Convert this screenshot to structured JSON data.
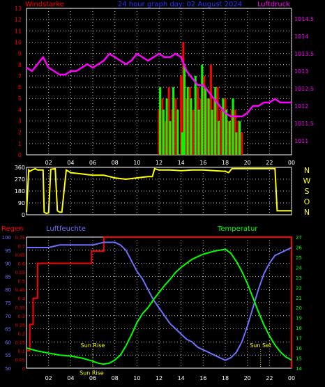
{
  "colors": {
    "bg": "#000000",
    "wind_bar": "#ff0000",
    "gust_bar": "#00ff00",
    "pressure": "#ff00ff",
    "direction": "#ffff00",
    "rain": "#ff0000",
    "humidity": "#7070ff",
    "temperature": "#00ff00",
    "grid": "#c0c0c0",
    "axis_white": "#ffffff",
    "title": "#3030ff"
  },
  "chart_data": [
    {
      "type": "bar",
      "title": "24 hour graph day: 02 August 2024",
      "ylabel_left": "Windstarke",
      "ylabel_right": "Luftdruck",
      "x_ticks": [
        "02",
        "04",
        "06",
        "08",
        "10",
        "12",
        "14",
        "16",
        "18",
        "20",
        "22",
        "00"
      ],
      "y_left_ticks": [
        0,
        1,
        2,
        3,
        4,
        5,
        6,
        7,
        8,
        9,
        10,
        11,
        12,
        13
      ],
      "y_left_range": [
        0,
        13
      ],
      "y_right_ticks": [
        1011,
        1011.5,
        1012,
        1012.5,
        1013,
        1013.5,
        1014,
        1014.5
      ],
      "y_right_range": [
        1010.6,
        1014.8
      ],
      "x_range": [
        0,
        24
      ],
      "series": [
        {
          "type": "bar",
          "color": "wind_bar",
          "note": "wind average",
          "x": [
            12.0,
            12.3,
            12.6,
            12.9,
            13.2,
            13.5,
            14.0,
            14.2,
            14.5,
            14.8,
            15.1,
            15.5,
            15.8,
            16.1,
            16.4,
            16.7,
            17.0,
            17.3,
            17.6,
            18.0,
            18.3,
            18.6,
            18.9,
            19.2,
            19.5
          ],
          "values": [
            4,
            5,
            3,
            6,
            4,
            5,
            7,
            10,
            5,
            6,
            4,
            6,
            5,
            7,
            5,
            8,
            5,
            6,
            4,
            5,
            3,
            4,
            4,
            3,
            2
          ]
        },
        {
          "type": "bar",
          "color": "gust_bar",
          "note": "wind gust",
          "x": [
            12.1,
            12.4,
            12.7,
            13.0,
            13.3,
            13.7,
            14.1,
            14.3,
            14.6,
            14.9,
            15.3,
            15.6,
            15.9,
            16.2,
            16.5,
            16.8,
            17.1,
            17.4,
            17.8,
            18.1,
            18.4,
            18.7,
            19.0,
            19.3
          ],
          "values": [
            6,
            4,
            5,
            3,
            6,
            4,
            2,
            8,
            6,
            5,
            7,
            4,
            8,
            6,
            5,
            4,
            6,
            3,
            5,
            4,
            3,
            5,
            2,
            3
          ]
        },
        {
          "type": "line",
          "color": "pressure",
          "axis": "right",
          "x": [
            0,
            0.5,
            1,
            1.5,
            2,
            2.5,
            3,
            3.5,
            4,
            4.5,
            5,
            5.5,
            6,
            6.5,
            7,
            7.5,
            8,
            8.5,
            9,
            9.5,
            10,
            10.5,
            11,
            11.5,
            12,
            12.5,
            13,
            13.5,
            14,
            14.5,
            15,
            15.5,
            16,
            16.5,
            17,
            17.5,
            18,
            18.5,
            19,
            19.5,
            20,
            20.5,
            21,
            21.5,
            22,
            22.5,
            23,
            23.5,
            24
          ],
          "values": [
            1013.1,
            1013.0,
            1013.2,
            1013.4,
            1013.1,
            1013.0,
            1012.9,
            1012.9,
            1013.0,
            1013.0,
            1013.1,
            1013.2,
            1013.1,
            1013.2,
            1013.3,
            1013.5,
            1013.4,
            1013.3,
            1013.2,
            1013.3,
            1013.5,
            1013.4,
            1013.3,
            1013.4,
            1013.5,
            1013.4,
            1013.4,
            1013.5,
            1013.4,
            1013.0,
            1012.8,
            1012.6,
            1012.6,
            1012.4,
            1012.2,
            1012.0,
            1011.8,
            1011.7,
            1011.7,
            1011.7,
            1011.8,
            1012.0,
            1012.0,
            1012.1,
            1012.1,
            1012.2,
            1012.1,
            1012.1,
            1012.1
          ]
        }
      ]
    },
    {
      "type": "line",
      "title": "",
      "y_left_ticks": [
        0,
        90,
        180,
        270,
        360
      ],
      "y_left_range": [
        0,
        360
      ],
      "y_right_labels": [
        "N",
        "W",
        "S",
        "O",
        "N"
      ],
      "x_range": [
        0,
        24
      ],
      "series": [
        {
          "name": "",
          "color": "direction",
          "x": [
            0,
            0.2,
            0.3,
            0.5,
            0.8,
            1.0,
            1.5,
            1.6,
            1.8,
            2.0,
            2.2,
            2.6,
            2.8,
            3.0,
            3.2,
            3.6,
            4.0,
            5.0,
            6.0,
            7.0,
            8.0,
            9.0,
            10.0,
            11.0,
            11.4,
            11.6,
            12.0,
            13.0,
            14.0,
            15.0,
            16.0,
            17.0,
            18.0,
            18.3,
            18.6,
            19.0,
            20.0,
            21.0,
            22.0,
            22.5,
            22.7,
            23.0,
            24.0
          ],
          "values": [
            20,
            340,
            330,
            340,
            350,
            340,
            340,
            20,
            10,
            15,
            345,
            350,
            30,
            20,
            20,
            340,
            320,
            310,
            300,
            300,
            280,
            270,
            280,
            290,
            290,
            350,
            340,
            340,
            335,
            340,
            340,
            335,
            330,
            320,
            350,
            350,
            350,
            350,
            350,
            350,
            30,
            30,
            30
          ]
        }
      ]
    },
    {
      "type": "line",
      "title": "",
      "ylabel_rain": "Regen",
      "ylabel_humidity": "Luftfeuchte",
      "ylabel_temperature": "Temperatur",
      "x_ticks": [
        "02",
        "04",
        "06",
        "08",
        "10",
        "12",
        "14",
        "16",
        "18",
        "20",
        "22",
        "00"
      ],
      "humidity_ticks": [
        50,
        55,
        60,
        65,
        70,
        75,
        80,
        85,
        90,
        95,
        100
      ],
      "humidity_range": [
        50,
        100
      ],
      "rain_ticks": [
        0,
        0.05,
        0.1,
        0.15,
        0.2,
        0.25,
        0.3,
        0.35,
        0.4,
        0.45,
        0.5,
        0.55,
        0.6,
        0.65,
        0.7,
        0.75
      ],
      "rain_range": [
        0,
        0.75
      ],
      "temp_ticks": [
        14,
        15,
        16,
        17,
        18,
        19,
        20,
        21,
        22,
        23,
        24,
        25,
        26,
        27
      ],
      "temp_range": [
        14,
        27
      ],
      "annotations": [
        {
          "text": "Sun Rise",
          "x": 6.0,
          "y_fraction": 0.16
        },
        {
          "text": "Sun Set",
          "x": 21.2,
          "y_fraction": 0.16
        },
        {
          "text": "Sun Rise",
          "x": 5.9,
          "y_fraction": -0.05
        }
      ],
      "series": [
        {
          "name": "",
          "color": "rain",
          "axis": "rain",
          "x": [
            0,
            0.3,
            0.3,
            0.6,
            0.6,
            1.0,
            1.0,
            5.9,
            5.9,
            7.0,
            7.0,
            24.0,
            24.0
          ],
          "values": [
            0.1,
            0.1,
            0.25,
            0.25,
            0.4,
            0.4,
            0.6,
            0.6,
            0.67,
            0.67,
            0.75,
            0.75,
            0.0
          ]
        },
        {
          "name": "",
          "color": "humidity",
          "axis": "humidity",
          "x": [
            0,
            1,
            2,
            3,
            4,
            5,
            6,
            7,
            8,
            8.5,
            9,
            9.5,
            10,
            10.5,
            11,
            11.5,
            12,
            12.5,
            13,
            13.5,
            14,
            14.5,
            15,
            15.5,
            16,
            16.5,
            17,
            17.5,
            18,
            18.5,
            19,
            19.5,
            20,
            20.5,
            21,
            21.5,
            22,
            22.5,
            23,
            23.5,
            24
          ],
          "values": [
            96,
            96,
            96,
            97,
            97,
            97,
            97,
            98,
            98,
            97,
            95,
            91,
            87,
            84,
            80,
            76,
            73,
            70,
            67,
            65,
            63,
            61,
            60,
            58,
            57,
            56,
            55,
            54,
            53,
            54,
            56,
            60,
            66,
            73,
            80,
            86,
            90,
            93,
            94,
            95,
            96
          ]
        },
        {
          "name": "",
          "color": "temperature",
          "axis": "temperature",
          "x": [
            0,
            1,
            2,
            3,
            4,
            5,
            6,
            6.5,
            7,
            7.5,
            8,
            8.5,
            9,
            9.5,
            10,
            10.5,
            11,
            11.5,
            12,
            12.5,
            13,
            13.5,
            14,
            15,
            16,
            17,
            18,
            18.5,
            19,
            19.5,
            20,
            20.5,
            21,
            21.5,
            22,
            22.5,
            23,
            23.5,
            24
          ],
          "values": [
            16.0,
            15.7,
            15.5,
            15.3,
            15.2,
            15.0,
            14.7,
            14.5,
            14.4,
            14.5,
            14.8,
            15.3,
            16.2,
            17.3,
            18.5,
            19.4,
            20.0,
            20.8,
            21.5,
            22.2,
            22.8,
            23.5,
            24.0,
            24.8,
            25.3,
            25.6,
            25.8,
            25.4,
            24.6,
            23.6,
            22.4,
            21.0,
            19.6,
            18.3,
            17.2,
            16.3,
            15.6,
            15.1,
            14.8
          ]
        }
      ]
    }
  ]
}
